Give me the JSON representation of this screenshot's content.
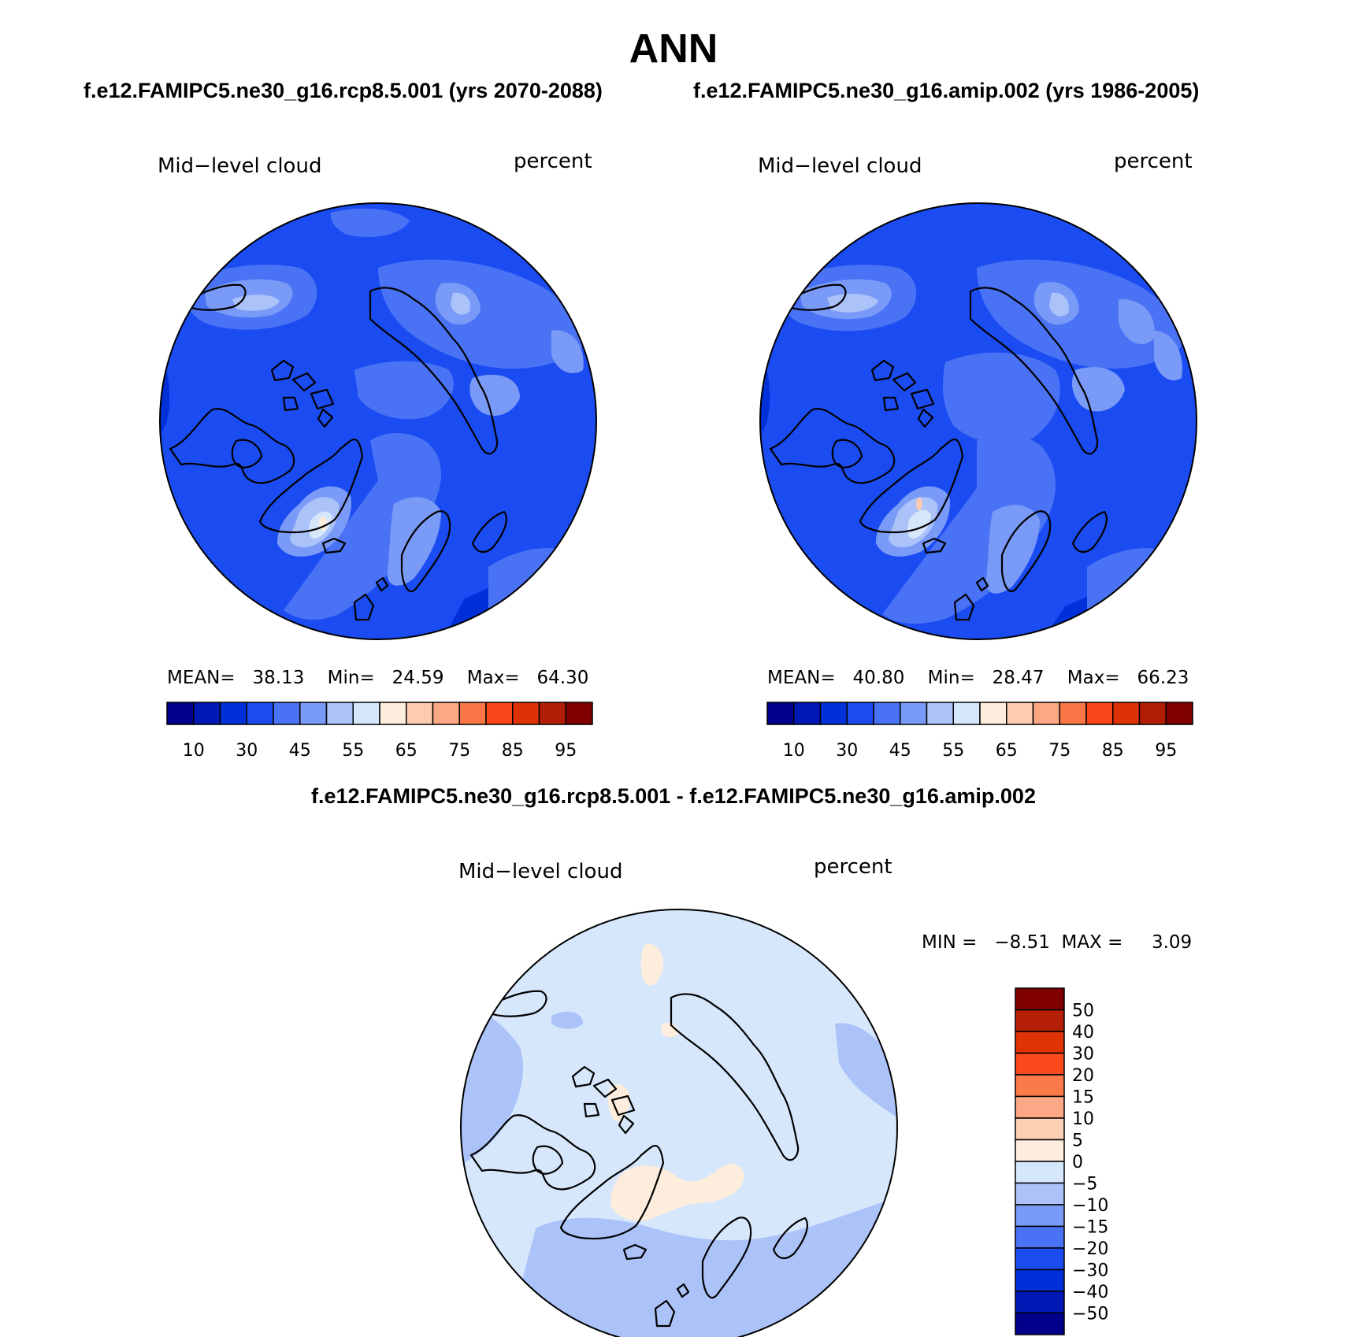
{
  "title": "ANN",
  "left_panel": {
    "case_title": "f.e12.FAMIPC5.ne30_g16.rcp8.5.001 (yrs 2070-2088)",
    "variable": "Mid−level cloud",
    "units": "percent",
    "stats": {
      "mean_label": "MEAN=",
      "mean": "38.13",
      "min_label": "Min=",
      "min": "24.59",
      "max_label": "Max=",
      "max": "64.30"
    }
  },
  "right_panel": {
    "case_title": "f.e12.FAMIPC5.ne30_g16.amip.002 (yrs 1986-2005)",
    "variable": "Mid−level cloud",
    "units": "percent",
    "stats": {
      "mean_label": "MEAN=",
      "mean": "40.80",
      "min_label": "Min=",
      "min": "28.47",
      "max_label": "Max=",
      "max": "66.23"
    }
  },
  "diff_panel": {
    "title": "f.e12.FAMIPC5.ne30_g16.rcp8.5.001 - f.e12.FAMIPC5.ne30_g16.amip.002",
    "variable": "Mid−level cloud",
    "units": "percent",
    "stats": {
      "min_label": "MIN =",
      "min": "−8.51",
      "max_label": "MAX =",
      "max": "3.09"
    }
  },
  "colorbar_abs": {
    "colors": [
      "#00008b",
      "#0018b4",
      "#0031d8",
      "#1a4cf2",
      "#4a72f5",
      "#7a9af7",
      "#abc3f9",
      "#d6e7fc",
      "#feeddc",
      "#fdcbb0",
      "#fca884",
      "#fb7646",
      "#f94618",
      "#de3206",
      "#b21d06",
      "#800000"
    ],
    "labels": [
      "10",
      "30",
      "45",
      "55",
      "65",
      "75",
      "85",
      "95"
    ]
  },
  "colorbar_diff": {
    "colors_top_to_bottom": [
      "#800000",
      "#b41f06",
      "#df3306",
      "#fa4a1b",
      "#fb7a4a",
      "#fca886",
      "#fdcfb3",
      "#feeddc",
      "#d6e7fc",
      "#abc3f9",
      "#7a9af7",
      "#4a72f5",
      "#1a4cf2",
      "#0031d8",
      "#0018b4",
      "#00008b"
    ],
    "labels_top_to_bottom": [
      "50",
      "40",
      "30",
      "20",
      "15",
      "10",
      "5",
      "0",
      "−5",
      "−10",
      "−15",
      "−20",
      "−30",
      "−40",
      "−50"
    ]
  },
  "map_colors": {
    "deep": "#0031d8",
    "base": "#1a4cf2",
    "mid": "#4a72f5",
    "light": "#7a9af7",
    "pale": "#abc3f9",
    "paler": "#d6e7fc",
    "warm": "#feeddc"
  }
}
